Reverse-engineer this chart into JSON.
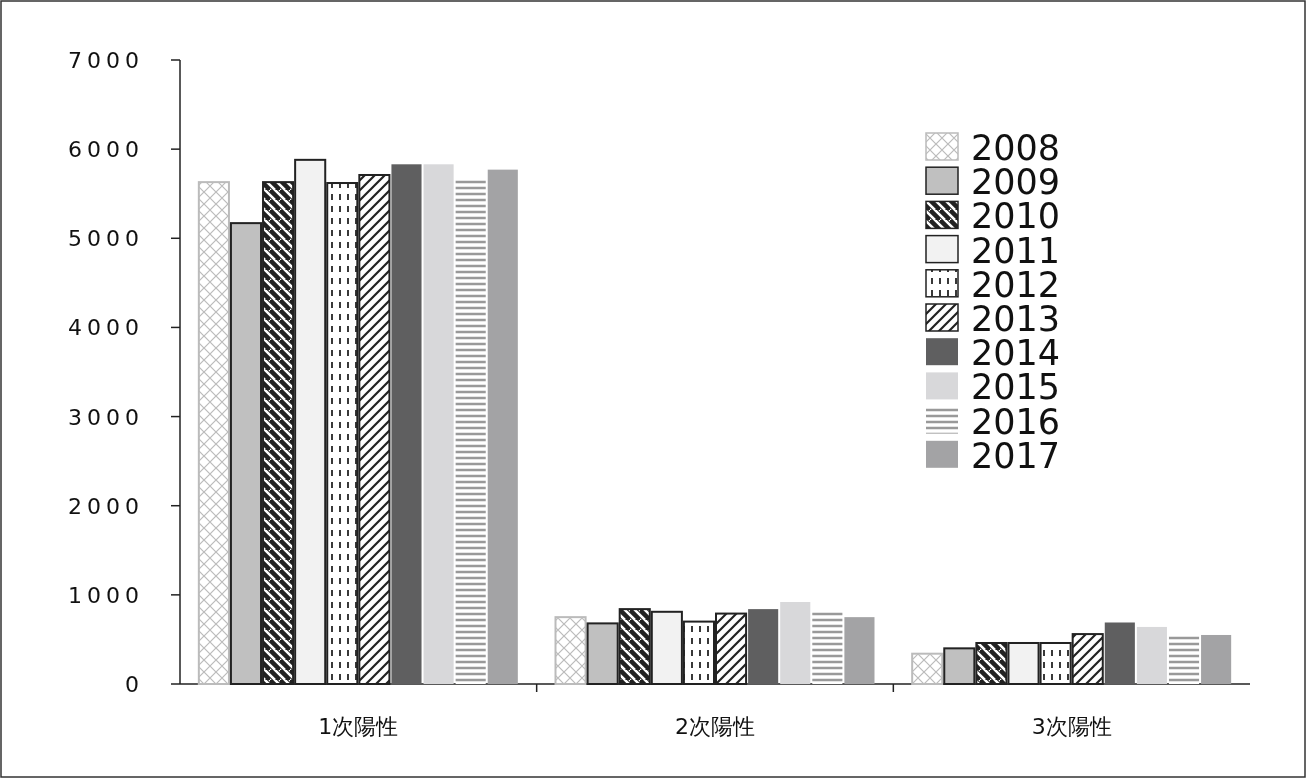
{
  "chart_data": {
    "type": "bar",
    "categories": [
      "1次陽性",
      "2次陽性",
      "3次陽性"
    ],
    "ylim": [
      0,
      7000
    ],
    "yticks": [
      0,
      1000,
      2000,
      3000,
      4000,
      5000,
      6000,
      7000
    ],
    "grid": false,
    "legend": "top right",
    "series": [
      {
        "name": "2008",
        "color": "#bbbbbb",
        "values": [
          5630,
          750,
          340
        ]
      },
      {
        "name": "2009",
        "color": "#c0c0c0",
        "values": [
          5170,
          680,
          400
        ]
      },
      {
        "name": "2010",
        "color": "#222222",
        "values": [
          5630,
          840,
          460
        ]
      },
      {
        "name": "2011",
        "color": "#f2f2f2",
        "values": [
          5880,
          810,
          460
        ]
      },
      {
        "name": "2012",
        "color": "#222222",
        "values": [
          5620,
          700,
          460
        ]
      },
      {
        "name": "2013",
        "color": "#222222",
        "values": [
          5710,
          790,
          560
        ]
      },
      {
        "name": "2014",
        "color": "#5f5f60",
        "values": [
          5830,
          840,
          690
        ]
      },
      {
        "name": "2015",
        "color": "#d8d8da",
        "values": [
          5830,
          920,
          640
        ]
      },
      {
        "name": "2016",
        "color": "#999999",
        "values": [
          5660,
          820,
          550
        ]
      },
      {
        "name": "2017",
        "color": "#a3a3a5",
        "values": [
          5770,
          750,
          550
        ]
      }
    ]
  }
}
